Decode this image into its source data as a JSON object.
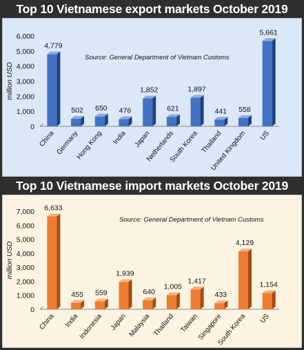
{
  "chart_data": [
    {
      "type": "bar",
      "title": "Top 10 Vietnamese export markets October 2019",
      "source": "Source: General Department of Vietnam Customs",
      "ylabel": "million USD",
      "xlabel": "",
      "ylim": [
        0,
        6000
      ],
      "yticks": [
        "0",
        "1,000",
        "2,000",
        "3,000",
        "4,000",
        "5,000",
        "6,000"
      ],
      "categories": [
        "China",
        "Germany",
        "Hong Kong",
        "India",
        "Japan",
        "Netherlands",
        "South Korea",
        "Thailand",
        "United Kingdom",
        "US"
      ],
      "values": [
        4779,
        502,
        650,
        476,
        1852,
        621,
        1897,
        441,
        558,
        5661
      ],
      "value_labels": [
        "4,779",
        "502",
        "650",
        "476",
        "1,852",
        "621",
        "1,897",
        "441",
        "558",
        "5,661"
      ],
      "colors": {
        "front": "#4472c4",
        "side": "#1f3f86",
        "top": "#8fa9df",
        "panel": "#dbe8f7"
      }
    },
    {
      "type": "bar",
      "title": "Top 10 Vietnamese import markets October 2019",
      "source": "Source: General Department of Vietnam Customs",
      "ylabel": "million USD",
      "xlabel": "",
      "ylim": [
        0,
        7000
      ],
      "yticks": [
        "0",
        "1,000",
        "2,000",
        "3,000",
        "4,000",
        "5,000",
        "6,000",
        "7,000"
      ],
      "categories": [
        "China",
        "India",
        "Indonesia",
        "Japan",
        "Malaysia",
        "Thailand",
        "Taiwan",
        "Singapore",
        "South Korea",
        "US"
      ],
      "values": [
        6633,
        455,
        559,
        1939,
        640,
        1005,
        1417,
        433,
        4129,
        1154
      ],
      "value_labels": [
        "6,633",
        "455",
        "559",
        "1,939",
        "640",
        "1,005",
        "1,417",
        "433",
        "4,129",
        "1,154"
      ],
      "colors": {
        "front": "#ed7d31",
        "side": "#a44b0e",
        "top": "#f6b07e",
        "panel": "#fdf3e2"
      }
    }
  ]
}
